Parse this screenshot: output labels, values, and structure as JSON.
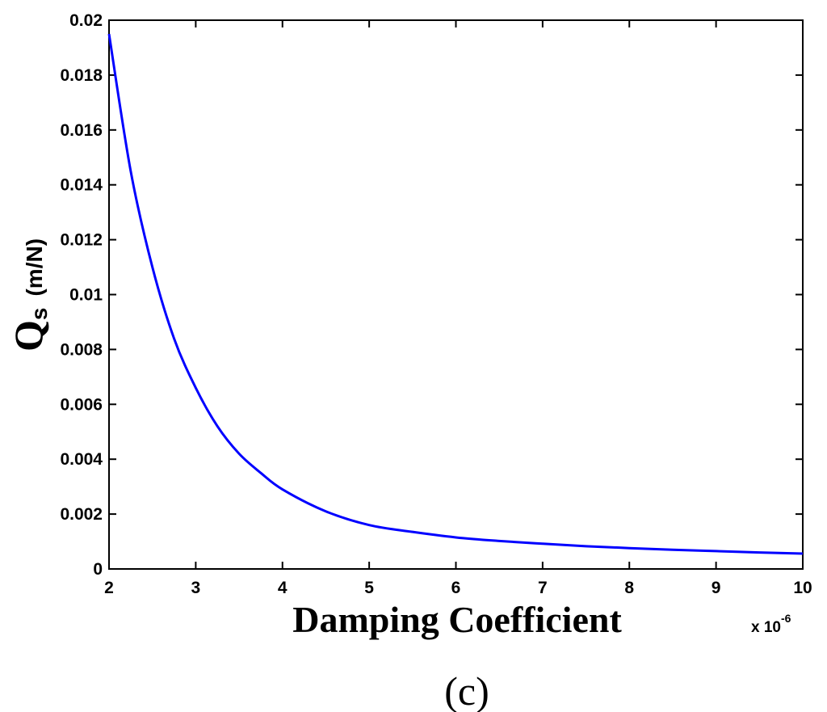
{
  "chart_data": {
    "type": "line",
    "xlabel": "Damping Coefficient",
    "ylabel_main": "Q",
    "ylabel_sub": "s",
    "ylabel_unit": "(m/N)",
    "x_multiplier_label": "x 10",
    "x_multiplier_exp": "-6",
    "panel_label": "(c)",
    "xlim": [
      2,
      10
    ],
    "ylim": [
      0,
      0.02
    ],
    "xticks": [
      2,
      3,
      4,
      5,
      6,
      7,
      8,
      9,
      10
    ],
    "xtick_labels": [
      "2",
      "3",
      "4",
      "5",
      "6",
      "7",
      "8",
      "9",
      "10"
    ],
    "yticks": [
      0,
      0.002,
      0.004,
      0.006,
      0.008,
      0.01,
      0.012,
      0.014,
      0.016,
      0.018,
      0.02
    ],
    "ytick_labels": [
      "0",
      "0.002",
      "0.004",
      "0.006",
      "0.008",
      "0.01",
      "0.012",
      "0.014",
      "0.016",
      "0.018",
      "0.02"
    ],
    "grid": false,
    "line_color": "#0000ff",
    "series": [
      {
        "x": [
          2.0,
          2.25,
          2.5,
          2.75,
          3.0,
          3.25,
          3.5,
          3.75,
          4.0,
          4.5,
          5.0,
          5.5,
          6.0,
          6.5,
          7.0,
          7.5,
          8.0,
          8.5,
          9.0,
          9.5,
          10.0
        ],
        "y": [
          0.0195,
          0.0145,
          0.011,
          0.0084,
          0.0066,
          0.0052,
          0.0042,
          0.0035,
          0.0029,
          0.0021,
          0.0016,
          0.00135,
          0.00115,
          0.00102,
          0.00092,
          0.00083,
          0.00076,
          0.0007,
          0.00065,
          0.0006,
          0.00056
        ]
      }
    ]
  }
}
